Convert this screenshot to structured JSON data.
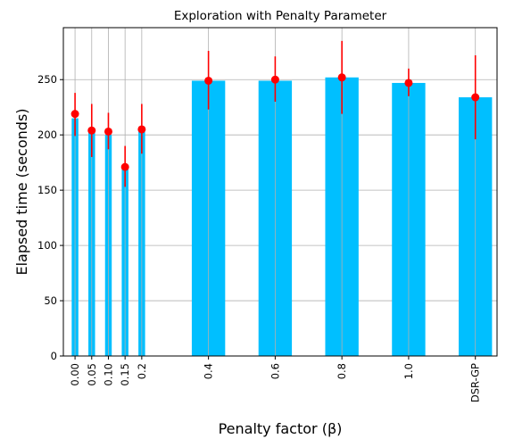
{
  "chart_data": {
    "type": "bar",
    "title": "Exploration with Penalty Parameter",
    "xlabel": "Penalty factor (β)",
    "ylabel": "Elapsed time (seconds)",
    "ylim": [
      0,
      297
    ],
    "yticks": [
      0,
      50,
      100,
      150,
      200,
      250
    ],
    "grid": true,
    "bar_color": "#00BFFF",
    "marker_color": "#FF0000",
    "categories": [
      "0.00",
      "0.05",
      "0.10",
      "0.15",
      "0.2",
      "0.4",
      "0.6",
      "0.8",
      "1.0",
      "DSR-GP"
    ],
    "x_positions": [
      0.0,
      0.05,
      0.1,
      0.15,
      0.2,
      0.4,
      0.6,
      0.8,
      1.0,
      1.2
    ],
    "bar_widths": [
      0.02,
      0.02,
      0.02,
      0.02,
      0.02,
      0.1,
      0.1,
      0.1,
      0.1,
      0.1
    ],
    "bar_values": [
      215,
      205,
      200,
      170,
      205,
      249,
      249,
      252,
      247,
      234
    ],
    "means": [
      219,
      204,
      203,
      171,
      205,
      249,
      250,
      252,
      247,
      234
    ],
    "error_low": [
      20,
      24,
      16,
      18,
      22,
      26,
      20,
      33,
      12,
      38
    ],
    "error_high": [
      19,
      24,
      17,
      19,
      23,
      27,
      21,
      33,
      13,
      38
    ]
  }
}
